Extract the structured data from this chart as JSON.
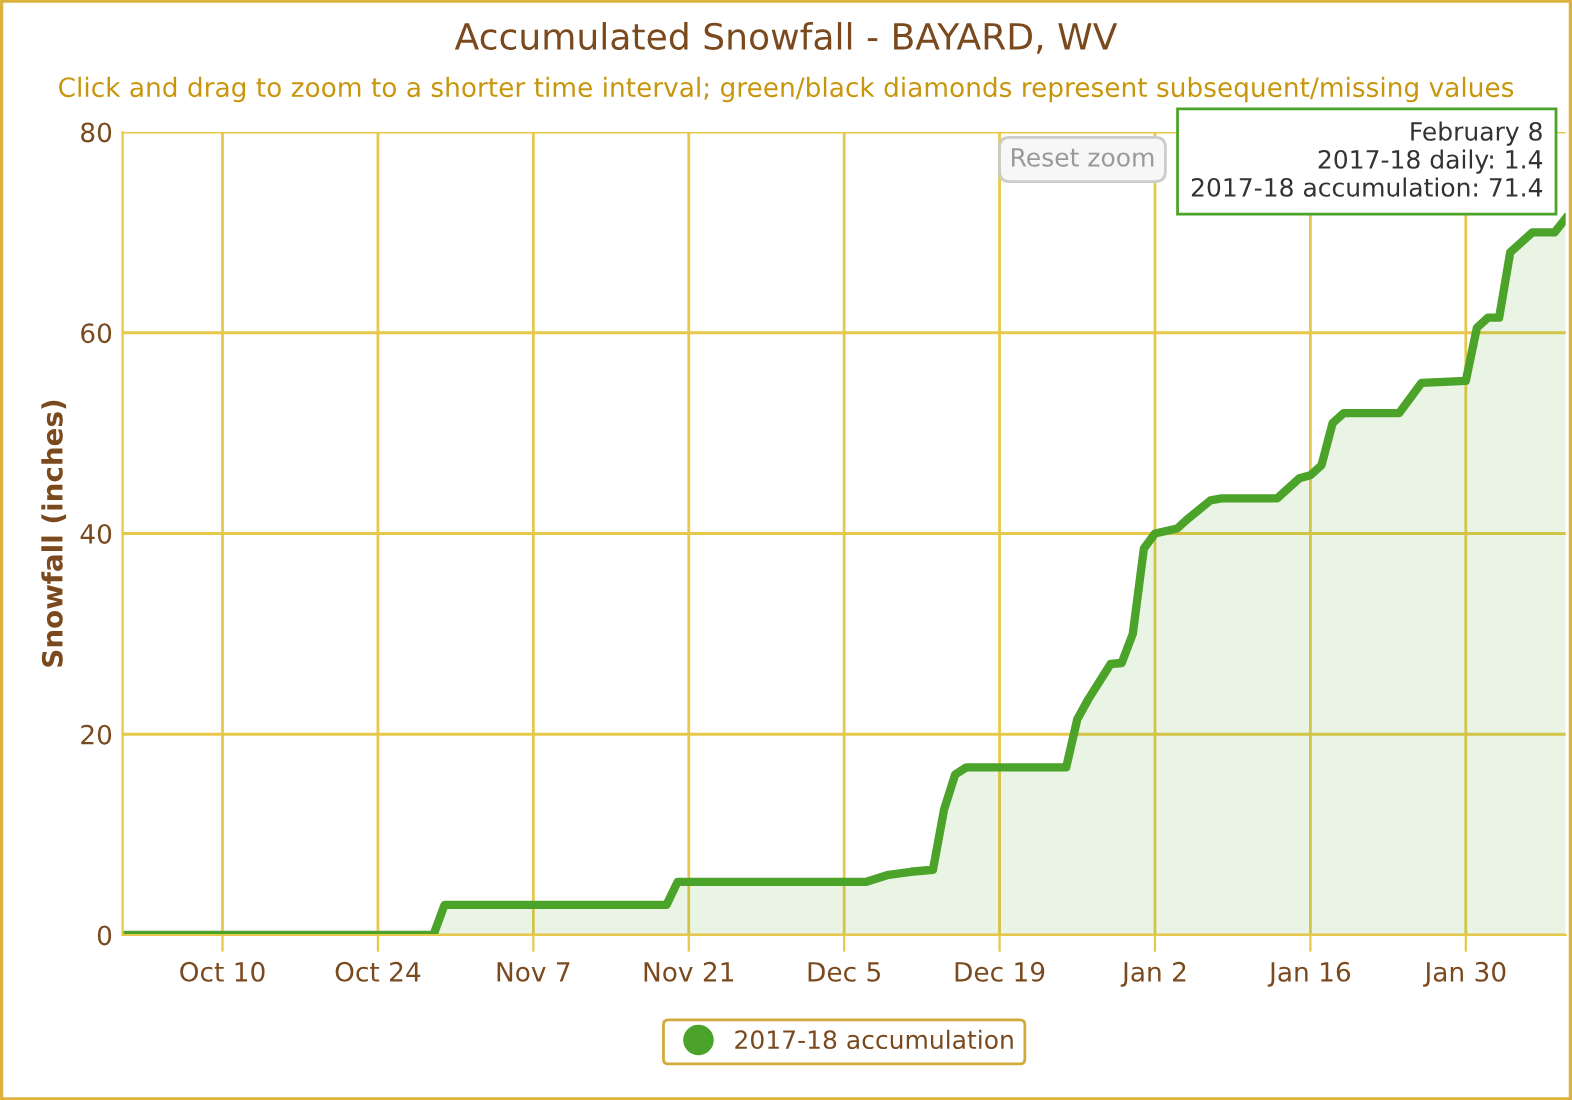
{
  "chart_data": {
    "type": "area",
    "title": "Accumulated Snowfall - BAYARD, WV",
    "subtitle": "Click and drag to zoom to a shorter time interval; green/black diamonds represent subsequent/missing values",
    "ylabel": "Snowfall (inches)",
    "x": [
      "2017-10-01",
      "2017-10-29",
      "2017-10-30",
      "2017-11-19",
      "2017-11-20",
      "2017-12-07",
      "2017-12-09",
      "2017-12-11",
      "2017-12-13",
      "2017-12-14",
      "2017-12-15",
      "2017-12-16",
      "2017-12-25",
      "2017-12-26",
      "2017-12-27",
      "2017-12-29",
      "2017-12-30",
      "2017-12-31",
      "2018-01-01",
      "2018-01-02",
      "2018-01-04",
      "2018-01-05",
      "2018-01-07",
      "2018-01-08",
      "2018-01-13",
      "2018-01-15",
      "2018-01-16",
      "2018-01-17",
      "2018-01-18",
      "2018-01-19",
      "2018-01-24",
      "2018-01-26",
      "2018-01-30",
      "2018-01-31",
      "2018-02-01",
      "2018-02-02",
      "2018-02-03",
      "2018-02-05",
      "2018-02-07",
      "2018-02-08"
    ],
    "series": [
      {
        "name": "2017-18 accumulation",
        "color": "#4ca32a",
        "values": [
          0,
          0,
          3,
          3,
          5.3,
          5.3,
          6,
          6.3,
          6.5,
          12.5,
          16,
          16.7,
          16.7,
          21.5,
          23.5,
          27,
          27.1,
          30,
          38.5,
          40,
          40.5,
          41.5,
          43.3,
          43.5,
          43.5,
          45.5,
          45.8,
          46.8,
          51,
          52,
          52,
          55,
          55.2,
          60.5,
          61.5,
          61.5,
          68,
          70,
          70,
          71.4
        ]
      }
    ],
    "xlim": [
      "2017-10-01",
      "2018-02-08"
    ],
    "xticks": [
      {
        "value": "2017-10-10",
        "label": "Oct 10"
      },
      {
        "value": "2017-10-24",
        "label": "Oct 24"
      },
      {
        "value": "2017-11-07",
        "label": "Nov 7"
      },
      {
        "value": "2017-11-21",
        "label": "Nov 21"
      },
      {
        "value": "2017-12-05",
        "label": "Dec 5"
      },
      {
        "value": "2017-12-19",
        "label": "Dec 19"
      },
      {
        "value": "2018-01-02",
        "label": "Jan 2"
      },
      {
        "value": "2018-01-16",
        "label": "Jan 16"
      },
      {
        "value": "2018-01-30",
        "label": "Jan 30"
      }
    ],
    "ylim": [
      0,
      80
    ],
    "yticks": [
      0,
      20,
      40,
      60,
      80
    ],
    "grid": true,
    "legend": "bottom",
    "marker": "none",
    "line_style": "solid",
    "annotations": [
      {
        "text": "February 8\n2017-18 daily: 1.4\n2017-18 accumulation: 71.4",
        "x": "2018-02-08",
        "y": 71.4
      },
      "Reset zoom"
    ]
  }
}
